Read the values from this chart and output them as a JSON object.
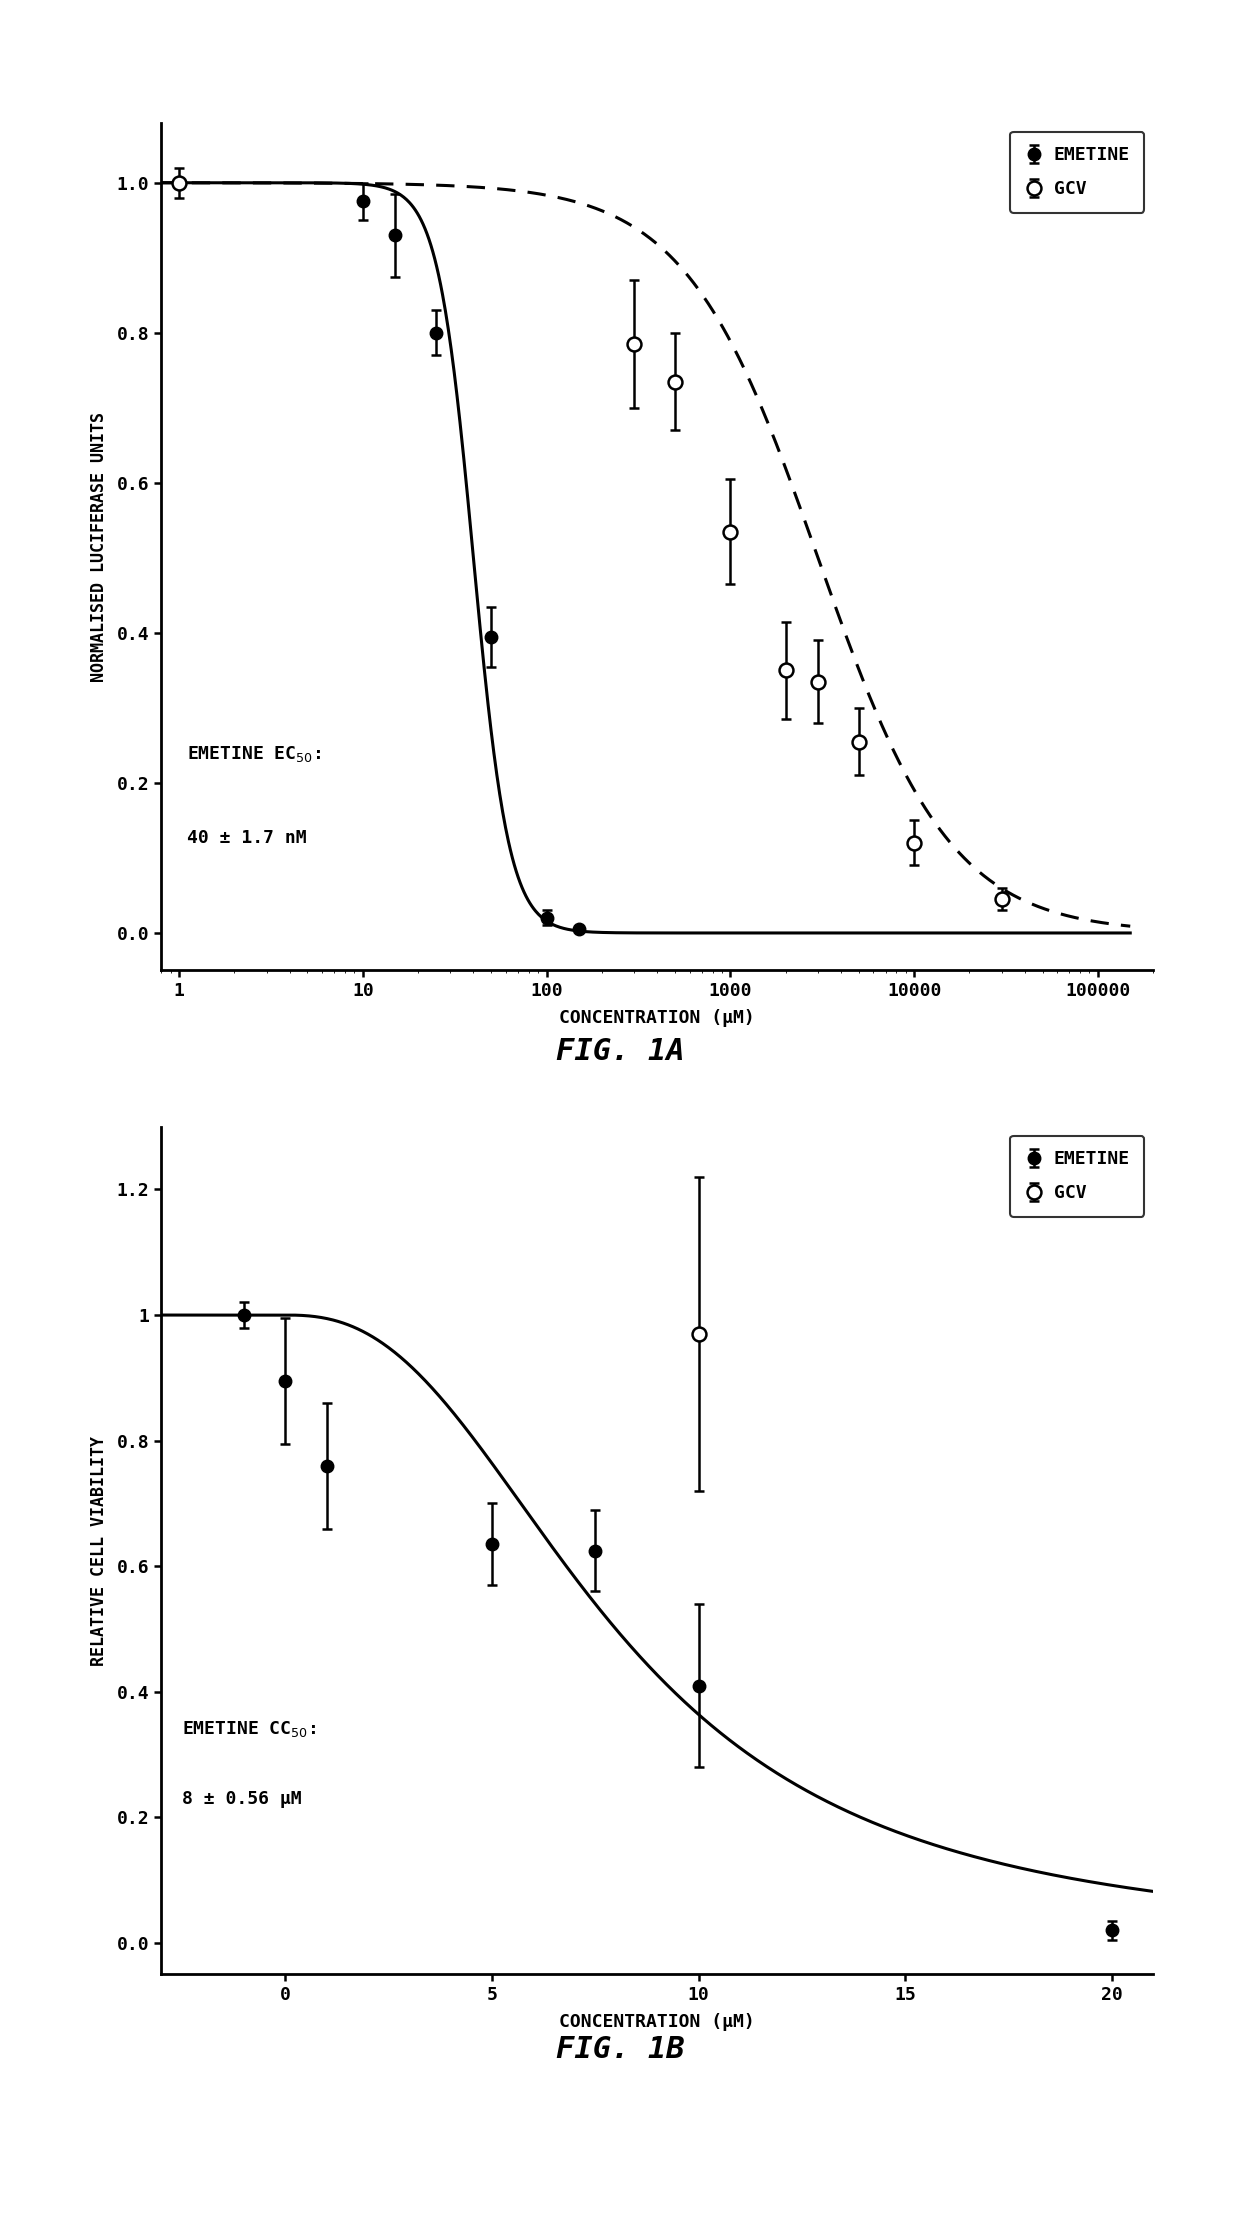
{
  "fig1a": {
    "title": "FIG. 1A",
    "ylabel": "NORMALISED LUCIFERASE UNITS",
    "xlabel": "CONCENTRATION (μM)",
    "ylim": [
      -0.05,
      1.08
    ],
    "emetine_x": [
      10,
      15,
      25,
      50,
      100,
      150
    ],
    "emetine_y": [
      0.975,
      0.93,
      0.8,
      0.395,
      0.02,
      0.005
    ],
    "emetine_yerr": [
      0.025,
      0.055,
      0.03,
      0.04,
      0.01,
      0.003
    ],
    "gcv_x": [
      1,
      300,
      500,
      1000,
      2000,
      3000,
      5000,
      10000,
      30000
    ],
    "gcv_y": [
      1.0,
      0.785,
      0.735,
      0.535,
      0.35,
      0.335,
      0.255,
      0.12,
      0.045
    ],
    "gcv_yerr": [
      0.02,
      0.085,
      0.065,
      0.07,
      0.065,
      0.055,
      0.045,
      0.03,
      0.015
    ],
    "emetine_ec50": 40.0,
    "emetine_hill": 4.5,
    "gcv_ec50": 3000.0,
    "gcv_hill": 1.2,
    "annotation_text1": "EMETINE EC$_{50}$:",
    "annotation_text2": "40 ± 1.7 nM",
    "legend_labels": [
      "EMETINE",
      "GCV"
    ]
  },
  "fig1b": {
    "title": "FIG. 1B",
    "ylabel": "RELATIVE CELL VIABILITY",
    "xlabel": "CONCENTRATION (μM)",
    "ylim": [
      -0.05,
      1.3
    ],
    "xlim": [
      -3,
      21
    ],
    "emetine_x": [
      -1,
      0,
      1,
      5,
      7.5,
      10,
      20
    ],
    "emetine_y": [
      1.0,
      0.895,
      0.76,
      0.635,
      0.625,
      0.41,
      0.02
    ],
    "emetine_yerr": [
      0.02,
      0.1,
      0.1,
      0.065,
      0.065,
      0.13,
      0.015
    ],
    "gcv_x": [
      10
    ],
    "gcv_y": [
      0.97
    ],
    "gcv_yerr": [
      0.25
    ],
    "emetine_cc50": 8.0,
    "emetine_hill": 2.5,
    "annotation_text1": "EMETINE CC$_{50}$:",
    "annotation_text2": "8 ± 0.56 μM",
    "legend_labels": [
      "EMETINE",
      "GCV"
    ]
  },
  "background_color": "#ffffff"
}
